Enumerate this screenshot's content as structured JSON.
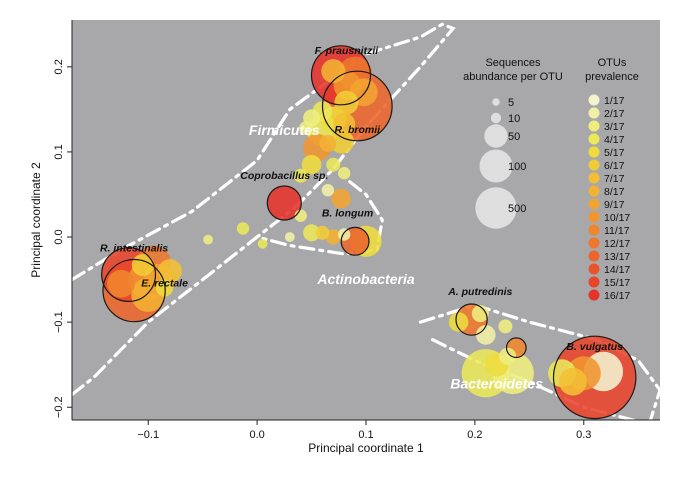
{
  "chart_data": {
    "type": "scatter",
    "xlabel": "Principal coordinate 1",
    "ylabel": "Principal coordinate 2",
    "xlim": [
      -0.17,
      0.37
    ],
    "ylim": [
      -0.215,
      0.255
    ],
    "x_ticks": [
      {
        "value": -0.1,
        "label": "−0.1"
      },
      {
        "value": 0.0,
        "label": "0.0"
      },
      {
        "value": 0.1,
        "label": "0.1"
      },
      {
        "value": 0.2,
        "label": "0.2"
      },
      {
        "value": 0.3,
        "label": "0.3"
      }
    ],
    "y_ticks": [
      {
        "value": -0.2,
        "label": "−0.2"
      },
      {
        "value": -0.1,
        "label": "−0.1"
      },
      {
        "value": 0.0,
        "label": "0.0"
      },
      {
        "value": 0.1,
        "label": "0.1"
      },
      {
        "value": 0.2,
        "label": "0.2"
      }
    ],
    "background_color": "#a8a8aa",
    "grid": false,
    "groups": [
      {
        "name": "Firmicutes",
        "x": 0.025,
        "y": 0.12
      },
      {
        "name": "Actinobacteria",
        "x": 0.1,
        "y": -0.055
      },
      {
        "name": "Bacteroidetes",
        "x": 0.22,
        "y": -0.178
      }
    ],
    "species_labels": [
      {
        "text": "F. prausnitzii",
        "x": 0.082,
        "y": 0.215
      },
      {
        "text": "R. bromii",
        "x": 0.092,
        "y": 0.122
      },
      {
        "text": "Coprobacillus sp.",
        "x": 0.025,
        "y": 0.068
      },
      {
        "text": "B. longum",
        "x": 0.083,
        "y": 0.024
      },
      {
        "text": "R. intestinalis",
        "x": -0.113,
        "y": -0.017
      },
      {
        "text": "E. rectale",
        "x": -0.085,
        "y": -0.058
      },
      {
        "text": "A. putredinis",
        "x": 0.205,
        "y": -0.068
      },
      {
        "text": "B. vulgatus",
        "x": 0.31,
        "y": -0.133
      }
    ],
    "size_legend": {
      "title": "Sequences abundance per OTU",
      "title_lines": [
        "Sequences",
        "abundance per OTU"
      ],
      "entries": [
        {
          "label": "5",
          "value": 5
        },
        {
          "label": "10",
          "value": 10
        },
        {
          "label": "50",
          "value": 50
        },
        {
          "label": "100",
          "value": 100
        },
        {
          "label": "500",
          "value": 500
        }
      ]
    },
    "color_legend": {
      "title": "OTUs prevalence",
      "title_lines": [
        "OTUs",
        "prevalence"
      ],
      "entries": [
        "1/17",
        "2/17",
        "3/17",
        "4/17",
        "5/17",
        "6/17",
        "7/17",
        "8/17",
        "9/17",
        "10/17",
        "11/17",
        "12/17",
        "13/17",
        "14/17",
        "15/17",
        "16/17"
      ],
      "colors": [
        "#f4f3cf",
        "#f1f0a6",
        "#eeee7e",
        "#ebe85a",
        "#eedc3f",
        "#f1cd35",
        "#f2bf34",
        "#f2b233",
        "#f2a432",
        "#f09530",
        "#ef862e",
        "#ee772d",
        "#ec652c",
        "#ea542b",
        "#e8442b",
        "#e5332b"
      ]
    },
    "points": [
      {
        "x": 0.077,
        "y": 0.19,
        "abundance": 180,
        "prevalence": 16,
        "outlined": true
      },
      {
        "x": 0.09,
        "y": 0.192,
        "abundance": 60,
        "prevalence": 12
      },
      {
        "x": 0.083,
        "y": 0.178,
        "abundance": 40,
        "prevalence": 10
      },
      {
        "x": 0.07,
        "y": 0.195,
        "abundance": 30,
        "prevalence": 8
      },
      {
        "x": 0.092,
        "y": 0.154,
        "abundance": 250,
        "prevalence": 13,
        "outlined": true
      },
      {
        "x": 0.098,
        "y": 0.17,
        "abundance": 40,
        "prevalence": 9
      },
      {
        "x": 0.082,
        "y": 0.158,
        "abundance": 30,
        "prevalence": 6
      },
      {
        "x": 0.06,
        "y": 0.148,
        "abundance": 20,
        "prevalence": 4
      },
      {
        "x": 0.07,
        "y": 0.138,
        "abundance": 35,
        "prevalence": 5
      },
      {
        "x": 0.08,
        "y": 0.133,
        "abundance": 25,
        "prevalence": 7
      },
      {
        "x": 0.06,
        "y": 0.125,
        "abundance": 50,
        "prevalence": 4
      },
      {
        "x": 0.05,
        "y": 0.14,
        "abundance": 15,
        "prevalence": 3
      },
      {
        "x": 0.078,
        "y": 0.112,
        "abundance": 30,
        "prevalence": 6
      },
      {
        "x": 0.055,
        "y": 0.105,
        "abundance": 40,
        "prevalence": 10
      },
      {
        "x": 0.065,
        "y": 0.11,
        "abundance": 15,
        "prevalence": 8
      },
      {
        "x": 0.045,
        "y": 0.128,
        "abundance": 10,
        "prevalence": 3
      },
      {
        "x": 0.05,
        "y": 0.085,
        "abundance": 20,
        "prevalence": 5
      },
      {
        "x": 0.07,
        "y": 0.085,
        "abundance": 10,
        "prevalence": 4
      },
      {
        "x": 0.08,
        "y": 0.075,
        "abundance": 8,
        "prevalence": 3
      },
      {
        "x": 0.04,
        "y": 0.072,
        "abundance": 10,
        "prevalence": 4
      },
      {
        "x": 0.065,
        "y": 0.055,
        "abundance": 8,
        "prevalence": 2
      },
      {
        "x": 0.025,
        "y": 0.04,
        "abundance": 60,
        "prevalence": 16,
        "outlined": true
      },
      {
        "x": 0.077,
        "y": 0.045,
        "abundance": 20,
        "prevalence": 9
      },
      {
        "x": 0.04,
        "y": 0.025,
        "abundance": 8,
        "prevalence": 3
      },
      {
        "x": 0.05,
        "y": 0.005,
        "abundance": 15,
        "prevalence": 4
      },
      {
        "x": 0.06,
        "y": 0.005,
        "abundance": 10,
        "prevalence": 6
      },
      {
        "x": 0.07,
        "y": 0.0,
        "abundance": 12,
        "prevalence": 8
      },
      {
        "x": 0.08,
        "y": 0.003,
        "abundance": 8,
        "prevalence": 2
      },
      {
        "x": 0.09,
        "y": -0.005,
        "abundance": 40,
        "prevalence": 13,
        "outlined": true
      },
      {
        "x": 0.1,
        "y": -0.005,
        "abundance": 50,
        "prevalence": 5
      },
      {
        "x": -0.013,
        "y": 0.01,
        "abundance": 8,
        "prevalence": 4
      },
      {
        "x": -0.045,
        "y": -0.003,
        "abundance": 5,
        "prevalence": 3
      },
      {
        "x": 0.005,
        "y": -0.008,
        "abundance": 5,
        "prevalence": 4
      },
      {
        "x": 0.03,
        "y": 0.0,
        "abundance": 5,
        "prevalence": 2
      },
      {
        "x": -0.118,
        "y": -0.044,
        "abundance": 150,
        "prevalence": 15,
        "outlined": true
      },
      {
        "x": -0.113,
        "y": -0.063,
        "abundance": 200,
        "prevalence": 13,
        "outlined": true
      },
      {
        "x": -0.095,
        "y": -0.03,
        "abundance": 60,
        "prevalence": 12
      },
      {
        "x": -0.1,
        "y": -0.05,
        "abundance": 80,
        "prevalence": 10
      },
      {
        "x": -0.09,
        "y": -0.05,
        "abundance": 50,
        "prevalence": 9
      },
      {
        "x": -0.1,
        "y": -0.068,
        "abundance": 60,
        "prevalence": 8
      },
      {
        "x": -0.08,
        "y": -0.04,
        "abundance": 30,
        "prevalence": 7
      },
      {
        "x": -0.125,
        "y": -0.055,
        "abundance": 40,
        "prevalence": 11
      },
      {
        "x": -0.105,
        "y": -0.033,
        "abundance": 25,
        "prevalence": 6
      },
      {
        "x": -0.085,
        "y": -0.06,
        "abundance": 15,
        "prevalence": 5
      },
      {
        "x": 0.197,
        "y": -0.097,
        "abundance": 50,
        "prevalence": 12,
        "outlined": true
      },
      {
        "x": 0.185,
        "y": -0.1,
        "abundance": 20,
        "prevalence": 5
      },
      {
        "x": 0.205,
        "y": -0.09,
        "abundance": 15,
        "prevalence": 3
      },
      {
        "x": 0.21,
        "y": -0.115,
        "abundance": 20,
        "prevalence": 2
      },
      {
        "x": 0.228,
        "y": -0.105,
        "abundance": 10,
        "prevalence": 3
      },
      {
        "x": 0.238,
        "y": -0.13,
        "abundance": 20,
        "prevalence": 11,
        "outlined": true
      },
      {
        "x": 0.23,
        "y": -0.14,
        "abundance": 15,
        "prevalence": 3
      },
      {
        "x": 0.21,
        "y": -0.16,
        "abundance": 120,
        "prevalence": 4
      },
      {
        "x": 0.235,
        "y": -0.16,
        "abundance": 90,
        "prevalence": 3
      },
      {
        "x": 0.22,
        "y": -0.15,
        "abundance": 30,
        "prevalence": 5
      },
      {
        "x": 0.28,
        "y": -0.16,
        "abundance": 40,
        "prevalence": 4
      },
      {
        "x": 0.31,
        "y": -0.165,
        "abundance": 350,
        "prevalence": 15,
        "outlined": true
      },
      {
        "x": 0.3,
        "y": -0.16,
        "abundance": 60,
        "prevalence": 10
      },
      {
        "x": 0.29,
        "y": -0.17,
        "abundance": 40,
        "prevalence": 7
      },
      {
        "x": 0.318,
        "y": -0.158,
        "abundance": 80,
        "prevalence": 1
      }
    ]
  }
}
